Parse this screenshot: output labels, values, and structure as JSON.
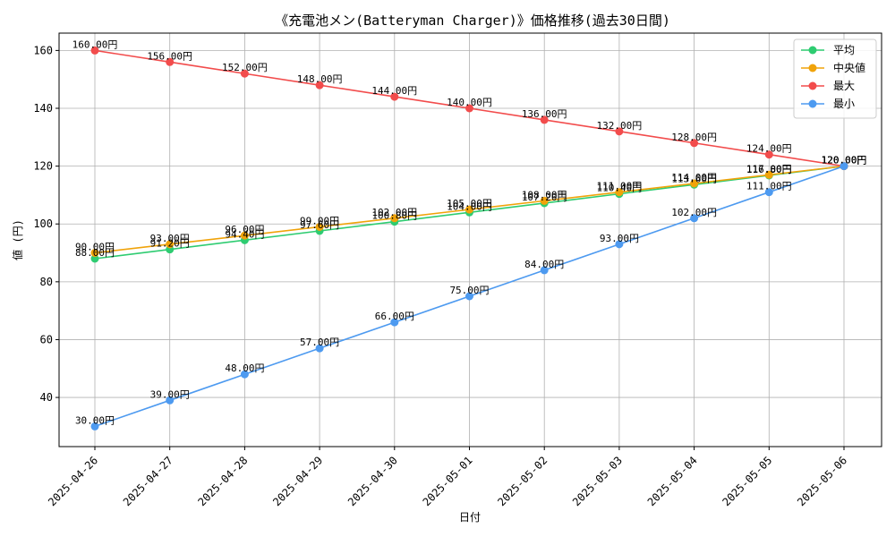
{
  "chart_data": {
    "type": "line",
    "title": "《充電池メン(Batteryman Charger)》価格推移(過去30日間)",
    "xlabel": "日付",
    "ylabel": "値 (円)",
    "ylim": [
      23,
      166
    ],
    "yticks": [
      40,
      60,
      80,
      100,
      120,
      140,
      160
    ],
    "grid": true,
    "legend_position": "top-right",
    "value_suffix": "円",
    "categories": [
      "2025-04-26",
      "2025-04-27",
      "2025-04-28",
      "2025-04-29",
      "2025-04-30",
      "2025-05-01",
      "2025-05-02",
      "2025-05-03",
      "2025-05-04",
      "2025-05-05",
      "2025-05-06"
    ],
    "series": [
      {
        "name": "平均",
        "color": "#2ecc71",
        "values": [
          88.0,
          91.2,
          94.4,
          97.6,
          100.8,
          104.0,
          107.2,
          110.4,
          113.6,
          116.8,
          120.0
        ]
      },
      {
        "name": "中央値",
        "color": "#f0a30a",
        "values": [
          90.0,
          93.0,
          96.0,
          99.0,
          102.0,
          105.0,
          108.0,
          111.0,
          114.0,
          117.0,
          120.0
        ]
      },
      {
        "name": "最大",
        "color": "#f24c4c",
        "values": [
          160.0,
          156.0,
          152.0,
          148.0,
          144.0,
          140.0,
          136.0,
          132.0,
          128.0,
          124.0,
          120.0
        ]
      },
      {
        "name": "最小",
        "color": "#4d9af0",
        "values": [
          30.0,
          39.0,
          48.0,
          57.0,
          66.0,
          75.0,
          84.0,
          93.0,
          102.0,
          111.0,
          120.0
        ]
      }
    ]
  }
}
